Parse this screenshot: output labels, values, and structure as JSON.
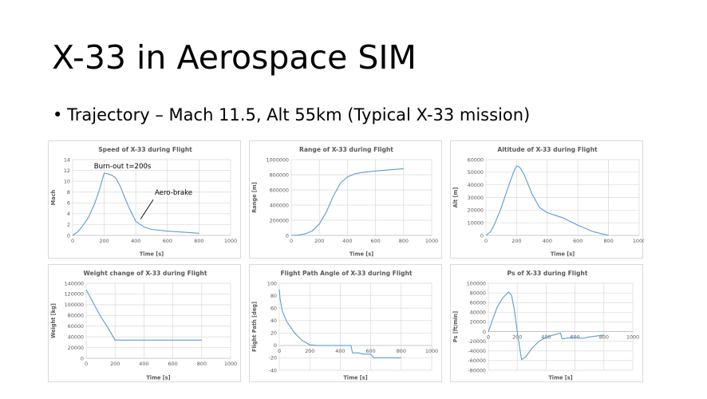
{
  "slide": {
    "title": "X-33 in Aerospace SIM",
    "bullet_marker": "•",
    "bullet": "Trajectory – Mach 11.5, Alt 55km (Typical X-33 mission)"
  },
  "colors": {
    "series": "#5b9bd5",
    "grid": "#d9d9d9",
    "text": "#595959",
    "panel_border": "#d9d9d9"
  },
  "chart_data": [
    {
      "type": "line",
      "title": "Speed of X-33 during Flight",
      "xlabel": "Time [s]",
      "ylabel": "Mach",
      "xlim": [
        0,
        1000
      ],
      "ylim": [
        0,
        14
      ],
      "xticks": [
        0,
        200,
        400,
        600,
        800,
        1000
      ],
      "yticks": [
        0,
        2,
        4,
        6,
        8,
        10,
        12,
        14
      ],
      "grid": true,
      "annotations": [
        {
          "text": "Burn-out t=200s",
          "x": 135,
          "y": 12.4
        },
        {
          "text": "Aero-brake",
          "x": 520,
          "y": 7.5
        }
      ],
      "pointer": [
        [
          510,
          6.6
        ],
        [
          430,
          3.0
        ]
      ],
      "series": [
        {
          "x": [
            0,
            30,
            60,
            100,
            140,
            170,
            200,
            220,
            250,
            270,
            300,
            330,
            360,
            400,
            450,
            500,
            600,
            700,
            800
          ],
          "y": [
            0,
            0.6,
            1.6,
            3.3,
            5.9,
            8.5,
            11.5,
            11.4,
            11.1,
            10.7,
            9.2,
            7.0,
            4.9,
            2.6,
            1.6,
            1.1,
            0.8,
            0.6,
            0.4
          ]
        }
      ]
    },
    {
      "type": "line",
      "title": "Range of X-33 during Flight",
      "xlabel": "Time [s]",
      "ylabel": "Range [m]",
      "xlim": [
        0,
        1000
      ],
      "ylim": [
        0,
        1000000
      ],
      "xticks": [
        0,
        200,
        400,
        600,
        800,
        1000
      ],
      "yticks": [
        0,
        200000,
        400000,
        600000,
        800000,
        1000000
      ],
      "grid": true,
      "series": [
        {
          "x": [
            0,
            50,
            100,
            150,
            200,
            250,
            300,
            350,
            400,
            450,
            500,
            600,
            700,
            800
          ],
          "y": [
            0,
            5000,
            20000,
            60000,
            150000,
            310000,
            520000,
            690000,
            770000,
            810000,
            830000,
            850000,
            865000,
            880000
          ]
        }
      ]
    },
    {
      "type": "line",
      "title": "Altitude of X-33 during Flight",
      "xlabel": "Time [s]",
      "ylabel": "Alt [m]",
      "xlim": [
        0,
        1000
      ],
      "ylim": [
        0,
        60000
      ],
      "xticks": [
        0,
        200,
        400,
        600,
        800,
        1000
      ],
      "yticks": [
        0,
        10000,
        20000,
        30000,
        40000,
        50000,
        60000
      ],
      "grid": true,
      "series": [
        {
          "x": [
            0,
            30,
            60,
            100,
            150,
            180,
            200,
            220,
            250,
            300,
            350,
            400,
            450,
            500,
            600,
            700,
            800
          ],
          "y": [
            0,
            3000,
            10000,
            22000,
            40000,
            50000,
            55000,
            54000,
            48000,
            33000,
            22000,
            18000,
            16000,
            14000,
            8000,
            3000,
            0
          ]
        }
      ]
    },
    {
      "type": "line",
      "title": "Weight change of X-33 during Flight",
      "xlabel": "Time [s]",
      "ylabel": "Weight [kg]",
      "xlim": [
        0,
        1000
      ],
      "ylim": [
        0,
        140000
      ],
      "xticks": [
        0,
        200,
        400,
        600,
        800,
        1000
      ],
      "yticks": [
        0,
        20000,
        40000,
        60000,
        80000,
        100000,
        120000,
        140000
      ],
      "grid": true,
      "series": [
        {
          "x": [
            0,
            50,
            100,
            150,
            200,
            400,
            600,
            800
          ],
          "y": [
            128000,
            103000,
            78000,
            57000,
            34000,
            34000,
            34000,
            34000
          ]
        }
      ]
    },
    {
      "type": "line",
      "title": "Flight Path Angle of X-33 during Flight",
      "xlabel": "Time [s]",
      "ylabel": "Flight Path [deg]",
      "xlim": [
        0,
        1000
      ],
      "ylim": [
        -40,
        100
      ],
      "xticks": [
        0,
        200,
        400,
        600,
        800,
        1000
      ],
      "yticks": [
        -40,
        -20,
        0,
        20,
        40,
        60,
        80,
        100
      ],
      "grid": true,
      "series": [
        {
          "x": [
            0,
            5,
            20,
            50,
            100,
            150,
            200,
            250,
            300,
            400,
            470,
            480,
            520,
            550,
            600,
            620,
            700,
            800
          ],
          "y": [
            90,
            75,
            55,
            38,
            20,
            8,
            1,
            0,
            0,
            0,
            0,
            -12,
            -12,
            -14,
            -14,
            -20,
            -20,
            -20
          ]
        }
      ]
    },
    {
      "type": "line",
      "title": "Ps of X-33 during Flight",
      "xlabel": "Time [s]",
      "ylabel": "Ps [ft/min]",
      "xlim": [
        0,
        1000
      ],
      "ylim": [
        -80000,
        100000
      ],
      "xticks": [
        0,
        200,
        400,
        600,
        800,
        1000
      ],
      "yticks": [
        -80000,
        -60000,
        -40000,
        -20000,
        0,
        20000,
        40000,
        60000,
        80000,
        100000
      ],
      "grid": true,
      "series": [
        {
          "x": [
            0,
            30,
            60,
            100,
            140,
            160,
            180,
            200,
            230,
            260,
            300,
            350,
            400,
            450,
            500,
            510,
            600,
            650,
            700,
            800
          ],
          "y": [
            0,
            25000,
            50000,
            70000,
            82000,
            75000,
            45000,
            0,
            -58000,
            -52000,
            -35000,
            -20000,
            -12000,
            -7000,
            -3000,
            -15000,
            -12000,
            -14000,
            -11000,
            -7000
          ]
        }
      ]
    }
  ]
}
